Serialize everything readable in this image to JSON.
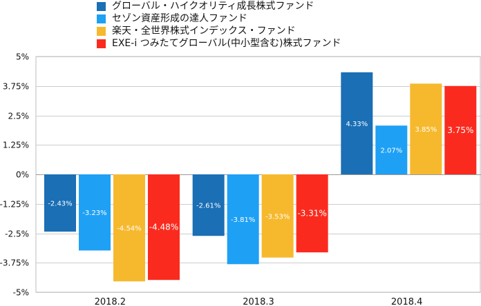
{
  "chart_data": {
    "type": "bar",
    "categories": [
      "2018.2",
      "2018.3",
      "2018.4"
    ],
    "series": [
      {
        "name": "グローバル・ハイクオリティ成長株式ファンド",
        "color": "#1a6fb5",
        "values": [
          -2.43,
          -2.61,
          4.33
        ],
        "labels": [
          "-2.43%",
          "-2.61%",
          "4.33%"
        ]
      },
      {
        "name": "セゾン資産形成の達人ファンド",
        "color": "#1ea0f5",
        "values": [
          -3.23,
          -3.81,
          2.07
        ],
        "labels": [
          "-3.23%",
          "-3.81%",
          "2.07%"
        ]
      },
      {
        "name": "楽天・全世界株式インデックス・ファンド",
        "color": "#f6b92e",
        "values": [
          -4.54,
          -3.53,
          3.85
        ],
        "labels": [
          "-4.54%",
          "-3.53%",
          "3.85%"
        ]
      },
      {
        "name": "EXE-i つみたてグローバル(中小型含む)株式ファンド",
        "color": "#fa2b1e",
        "values": [
          -4.48,
          -3.31,
          3.75
        ],
        "labels": [
          "-4.48%",
          "-3.31%",
          "3.75%"
        ]
      }
    ],
    "ylim": [
      -5,
      5
    ],
    "yticks": [
      5,
      3.75,
      2.5,
      1.25,
      0,
      -1.25,
      -2.5,
      -3.75,
      -5
    ],
    "ytick_labels": [
      "5%",
      "3.75%",
      "2.5%",
      "1.25%",
      "0%",
      "-1.25%",
      "-2.5%",
      "-3.75%",
      "-5%"
    ],
    "grid": true,
    "legend_position": "top"
  }
}
